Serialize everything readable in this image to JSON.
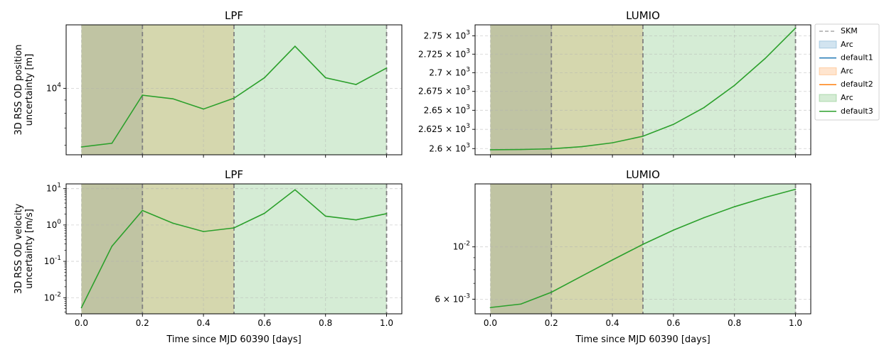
{
  "chart_data": [
    {
      "type": "line",
      "title": "LPF",
      "ylabel_lines": [
        "3D RSS OD position",
        "uncertainty [m]"
      ],
      "yscale": "log",
      "ylim": [
        5500,
        17700
      ],
      "ytick_labels": [
        "10^4"
      ],
      "xlim": [
        -0.05,
        1.05
      ],
      "xlabel": "",
      "grid": true,
      "arcs": [
        {
          "start": 0.0,
          "end": 0.2
        },
        {
          "start": 0.2,
          "end": 0.5
        },
        {
          "start": 0.5,
          "end": 1.0
        }
      ],
      "skm": [
        0.2,
        0.5,
        1.0
      ],
      "series": [
        {
          "x": [
            0.0,
            0.1,
            0.2,
            0.3,
            0.4,
            0.5,
            0.6,
            0.7,
            0.8,
            0.9,
            1.0
          ],
          "y": [
            5900,
            6100,
            9400,
            9100,
            8300,
            9150,
            11000,
            14600,
            11000,
            10350,
            12000
          ]
        }
      ]
    },
    {
      "type": "line",
      "title": "LUMIO",
      "ylabel_lines": [],
      "yscale": "log",
      "ylim": [
        2592,
        2765
      ],
      "ytick_labels": [
        {
          "value": 2600,
          "label": "2.6 × 10^3"
        },
        {
          "value": 2625,
          "label": "2.625 × 10^3"
        },
        {
          "value": 2650,
          "label": "2.65 × 10^3"
        },
        {
          "value": 2675,
          "label": "2.675 × 10^3"
        },
        {
          "value": 2700,
          "label": "2.7 × 10^3"
        },
        {
          "value": 2725,
          "label": "2.725 × 10^3"
        },
        {
          "value": 2750,
          "label": "2.75 × 10^3"
        }
      ],
      "xlim": [
        -0.05,
        1.05
      ],
      "xlabel": "",
      "grid": true,
      "arcs": [
        {
          "start": 0.0,
          "end": 0.2
        },
        {
          "start": 0.2,
          "end": 0.5
        },
        {
          "start": 0.5,
          "end": 1.0
        }
      ],
      "skm": [
        0.2,
        0.5,
        1.0
      ],
      "series": [
        {
          "x": [
            0.0,
            0.1,
            0.2,
            0.3,
            0.4,
            0.5,
            0.6,
            0.7,
            0.8,
            0.9,
            1.0
          ],
          "y": [
            2598.5,
            2598.8,
            2599.7,
            2602.5,
            2607.5,
            2616.0,
            2631.5,
            2653.5,
            2683.0,
            2719.0,
            2760.5
          ]
        }
      ]
    },
    {
      "type": "line",
      "title": "LPF",
      "ylabel_lines": [
        "3D RSS OD velocity",
        "uncertainty [m/s]"
      ],
      "yscale": "log",
      "ylim": [
        0.0036,
        13.5
      ],
      "ytick_labels": [
        {
          "value": 0.01,
          "label": "10^-2"
        },
        {
          "value": 0.1,
          "label": "10^-1"
        },
        {
          "value": 1,
          "label": "10^0"
        },
        {
          "value": 10,
          "label": "10^1"
        }
      ],
      "xlim": [
        -0.05,
        1.05
      ],
      "xticks": [
        "0.0",
        "0.2",
        "0.4",
        "0.6",
        "0.8",
        "1.0"
      ],
      "xlabel": "Time since MJD 60390 [days]",
      "grid": true,
      "arcs": [
        {
          "start": 0.0,
          "end": 0.2
        },
        {
          "start": 0.2,
          "end": 0.5
        },
        {
          "start": 0.5,
          "end": 1.0
        }
      ],
      "skm": [
        0.2,
        0.5,
        1.0
      ],
      "series": [
        {
          "x": [
            0.0,
            0.1,
            0.2,
            0.3,
            0.4,
            0.5,
            0.6,
            0.7,
            0.8,
            0.9,
            1.0
          ],
          "y": [
            0.0053,
            0.26,
            2.5,
            1.12,
            0.66,
            0.83,
            2.1,
            9.3,
            1.75,
            1.38,
            2.05
          ]
        }
      ]
    },
    {
      "type": "line",
      "title": "LUMIO",
      "ylabel_lines": [],
      "yscale": "log",
      "ylim": [
        0.0052,
        0.0185
      ],
      "ytick_labels": [
        {
          "value": 0.006,
          "label": "6 × 10^-3"
        },
        {
          "value": 0.01,
          "label": "10^-2"
        }
      ],
      "xlim": [
        -0.05,
        1.05
      ],
      "xticks": [
        "0.0",
        "0.2",
        "0.4",
        "0.6",
        "0.8",
        "1.0"
      ],
      "xlabel": "Time since MJD 60390 [days]",
      "grid": true,
      "arcs": [
        {
          "start": 0.0,
          "end": 0.2
        },
        {
          "start": 0.2,
          "end": 0.5
        },
        {
          "start": 0.5,
          "end": 1.0
        }
      ],
      "skm": [
        0.2,
        0.5,
        1.0
      ],
      "series": [
        {
          "x": [
            0.0,
            0.1,
            0.2,
            0.3,
            0.4,
            0.5,
            0.6,
            0.7,
            0.8,
            0.9,
            1.0
          ],
          "y": [
            0.00553,
            0.00572,
            0.00642,
            0.00752,
            0.0088,
            0.01025,
            0.01178,
            0.0133,
            0.0148,
            0.0162,
            0.01755
          ]
        }
      ]
    }
  ],
  "legend": {
    "location": "upper-right-outside",
    "entries": [
      {
        "label": "SKM",
        "kind": "dashline",
        "color": "#a8a8a8"
      },
      {
        "label": "Arc",
        "kind": "patch",
        "color": "#1f77b4"
      },
      {
        "label": "default1",
        "kind": "line",
        "color": "#1f77b4"
      },
      {
        "label": "Arc",
        "kind": "patch",
        "color": "#ff7f0e"
      },
      {
        "label": "default2",
        "kind": "line",
        "color": "#ff7f0e"
      },
      {
        "label": "Arc",
        "kind": "patch",
        "color": "#2ca02c"
      },
      {
        "label": "default3",
        "kind": "line",
        "color": "#2ca02c"
      }
    ]
  },
  "colors": {
    "arc1": "#1f77b4",
    "arc2": "#ff7f0e",
    "arc3": "#2ca02c",
    "line": "#2ca02c",
    "skm": "#808080"
  }
}
